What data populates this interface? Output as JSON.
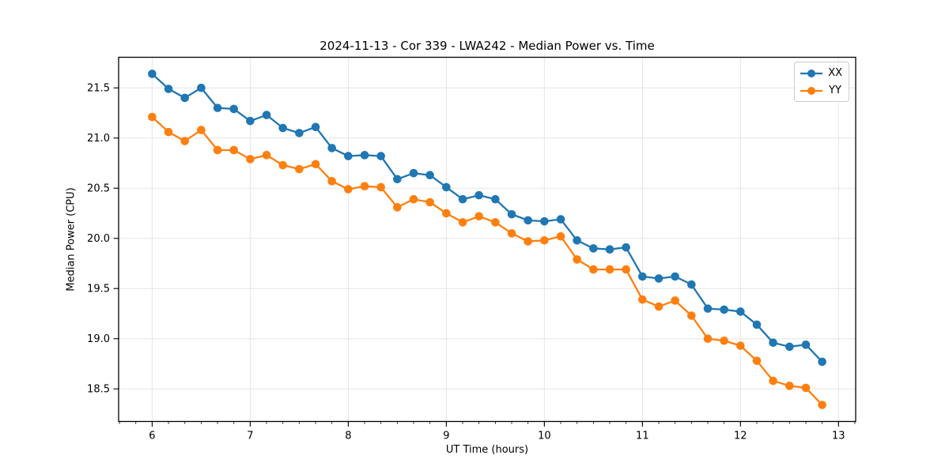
{
  "figure": {
    "background": "#ffffff",
    "frame_color": "#000000",
    "grid_color": "#e5e5e5"
  },
  "chart_data": {
    "type": "line",
    "title": "2024-11-13 - Cor 339 - LWA242 - Median Power vs. Time",
    "xlabel": "UT Time (hours)",
    "ylabel": "Median Power (CPU)",
    "xlim": [
      5.658,
      13.175
    ],
    "ylim": [
      18.175,
      21.805
    ],
    "xticks": [
      6,
      7,
      8,
      9,
      10,
      11,
      12,
      13
    ],
    "yticks": [
      18.5,
      19.0,
      19.5,
      20.0,
      20.5,
      21.0,
      21.5
    ],
    "x_minor_step": 0.166667,
    "grid": true,
    "legend_position": "upper right",
    "x": [
      6.0,
      6.167,
      6.333,
      6.5,
      6.667,
      6.833,
      7.0,
      7.167,
      7.333,
      7.5,
      7.667,
      7.833,
      8.0,
      8.167,
      8.333,
      8.5,
      8.667,
      8.833,
      9.0,
      9.167,
      9.333,
      9.5,
      9.667,
      9.833,
      10.0,
      10.167,
      10.333,
      10.5,
      10.667,
      10.833,
      11.0,
      11.167,
      11.333,
      11.5,
      11.667,
      11.833,
      12.0,
      12.167,
      12.333,
      12.5,
      12.667,
      12.833
    ],
    "series": [
      {
        "name": "XX",
        "color": "#1f77b4",
        "values": [
          21.64,
          21.49,
          21.4,
          21.5,
          21.3,
          21.29,
          21.17,
          21.23,
          21.1,
          21.05,
          21.11,
          20.9,
          20.82,
          20.83,
          20.82,
          20.59,
          20.65,
          20.63,
          20.51,
          20.39,
          20.43,
          20.39,
          20.24,
          20.18,
          20.17,
          20.19,
          19.98,
          19.9,
          19.89,
          19.91,
          19.62,
          19.6,
          19.62,
          19.54,
          19.3,
          19.29,
          19.27,
          19.14,
          18.96,
          18.92,
          18.94,
          18.77
        ]
      },
      {
        "name": "YY",
        "color": "#ff7f0e",
        "values": [
          21.21,
          21.06,
          20.97,
          21.08,
          20.88,
          20.88,
          20.79,
          20.83,
          20.73,
          20.69,
          20.74,
          20.57,
          20.49,
          20.52,
          20.51,
          20.31,
          20.39,
          20.36,
          20.25,
          20.16,
          20.22,
          20.16,
          20.05,
          19.97,
          19.98,
          20.02,
          19.79,
          19.69,
          19.69,
          19.69,
          19.39,
          19.32,
          19.38,
          19.23,
          19.0,
          18.98,
          18.93,
          18.78,
          18.58,
          18.53,
          18.51,
          18.34
        ]
      }
    ]
  }
}
